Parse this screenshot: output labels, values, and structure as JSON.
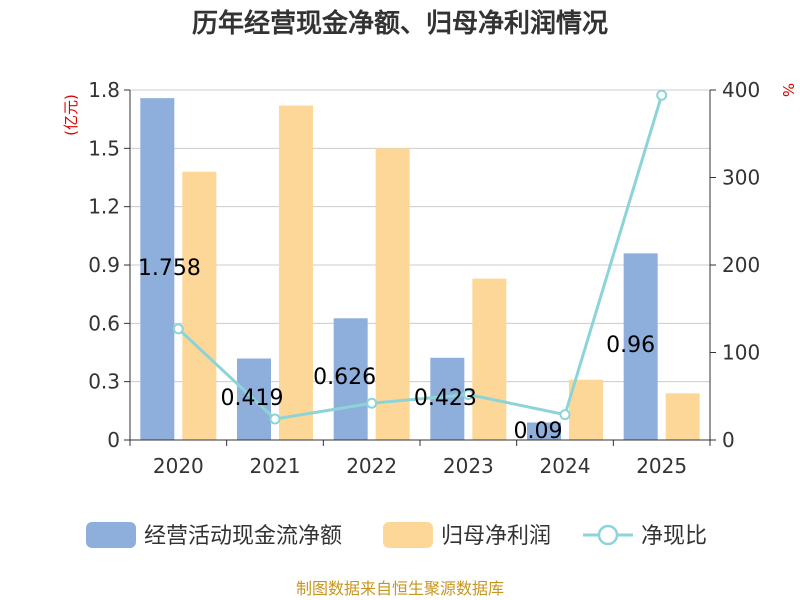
{
  "chart_data": {
    "type": "bar",
    "title": "历年经营现金净额、归母净利润情况",
    "categories": [
      "2020",
      "2021",
      "2022",
      "2023",
      "2024",
      "2025"
    ],
    "y_left": {
      "label": "(亿元)",
      "ylim": [
        0,
        1.8
      ],
      "ticks": [
        "0",
        "0.3",
        "0.6",
        "0.9",
        "1.2",
        "1.5",
        "1.8"
      ]
    },
    "y_right": {
      "label": "%",
      "ylim": [
        0,
        400
      ],
      "ticks": [
        "0",
        "100",
        "200",
        "300",
        "400"
      ]
    },
    "series": [
      {
        "name": "经营活动现金流净额",
        "type": "bar",
        "axis": "left",
        "color": "#8eaedb",
        "values": [
          1.758,
          0.419,
          0.626,
          0.423,
          0.09,
          0.96
        ],
        "labels": [
          "1.758",
          "0.419",
          "0.626",
          "0.423",
          "0.09",
          "0.96"
        ]
      },
      {
        "name": "归母净利润",
        "type": "bar",
        "axis": "left",
        "color": "#fdd797",
        "values": [
          1.38,
          1.72,
          1.5,
          0.83,
          0.31,
          0.24
        ]
      },
      {
        "name": "净现比",
        "type": "line",
        "axis": "right",
        "color": "#8dd4d8",
        "values": [
          127,
          24,
          42,
          52,
          29,
          394
        ]
      }
    ],
    "legend_position": "bottom",
    "grid": true
  },
  "footer": "制图数据来自恒生聚源数据库"
}
